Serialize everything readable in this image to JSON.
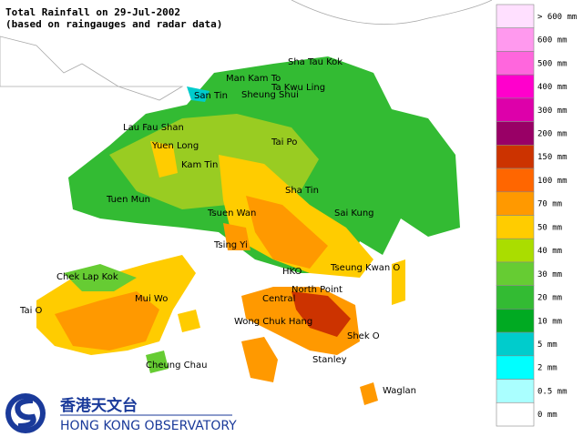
{
  "header": {
    "title": "Total Rainfall on 29-Jul-2002",
    "subtitle": "(based on raingauges and radar data)"
  },
  "places": [
    "Sha Tau Kok",
    "Man Kam To",
    "Ta Kwu Ling",
    "San Tin",
    "Sheung Shui",
    "Lau Fau Shan",
    "Yuen Long",
    "Tai Po",
    "Kam Tin",
    "Tuen Mun",
    "Sha Tin",
    "Tsuen Wan",
    "Sai Kung",
    "Tsing Yi",
    "Chek Lap Kok",
    "Tseung Kwan O",
    "HKO",
    "Mui Wo",
    "North Point",
    "Central",
    "Tai O",
    "Wong Chuk Hang",
    "Shek O",
    "Cheung Chau",
    "Stanley",
    "Waglan"
  ],
  "legend": [
    {
      "label": "> 600 mm",
      "color": "#ffe0ff"
    },
    {
      "label": "600 mm",
      "color": "#ff99ee"
    },
    {
      "label": "500 mm",
      "color": "#ff66dd"
    },
    {
      "label": "400 mm",
      "color": "#ff00cc"
    },
    {
      "label": "300 mm",
      "color": "#dd00aa"
    },
    {
      "label": "200 mm",
      "color": "#990066"
    },
    {
      "label": "150 mm",
      "color": "#cc3300"
    },
    {
      "label": "100 mm",
      "color": "#ff6600"
    },
    {
      "label": "70 mm",
      "color": "#ff9900"
    },
    {
      "label": "50 mm",
      "color": "#ffcc00"
    },
    {
      "label": "40 mm",
      "color": "#aadd00"
    },
    {
      "label": "30 mm",
      "color": "#66cc33"
    },
    {
      "label": "20 mm",
      "color": "#33bb33"
    },
    {
      "label": "10 mm",
      "color": "#00aa22"
    },
    {
      "label": "5 mm",
      "color": "#00cccc"
    },
    {
      "label": "2 mm",
      "color": "#00ffff"
    },
    {
      "label": "0.5 mm",
      "color": "#aaffff"
    },
    {
      "label": "0 mm",
      "color": "#ffffff"
    }
  ],
  "logo": {
    "chinese": "香港天文台",
    "english": "HONG KONG OBSERVATORY"
  }
}
